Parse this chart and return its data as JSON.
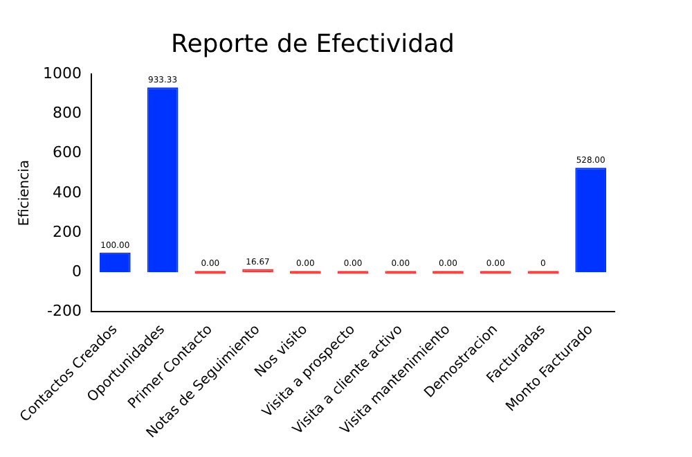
{
  "chart_data": {
    "type": "bar",
    "title": "Reporte de Efectividad",
    "ylabel": "Eficiencia",
    "categories": [
      "Contactos Creados",
      "Oportunidades",
      "Primer Contacto",
      "Notas de Seguimiento",
      "Nos visito",
      "Visita a prospecto",
      "Visita a cliente activo",
      "Visita mantenimiento",
      "Demostracion",
      "Facturadas",
      "Monto Facturado"
    ],
    "values": [
      100,
      933.33,
      0,
      16.67,
      0,
      0,
      0,
      0,
      0,
      0,
      528
    ],
    "value_labels": [
      "100.00",
      "933.33",
      "0.00",
      "16.67",
      "0.00",
      "0.00",
      "0.00",
      "0.00",
      "0.00",
      "0",
      "528.00"
    ],
    "colors": [
      "#0033ff",
      "#0033ff",
      "#ff3333",
      "#ff3333",
      "#ff3333",
      "#ff3333",
      "#ff3333",
      "#ff3333",
      "#ff3333",
      "#ff3333",
      "#0033ff"
    ],
    "ylim": [
      -200,
      1000
    ],
    "yticks": [
      -200,
      0,
      200,
      400,
      600,
      800,
      1000
    ],
    "grid": false,
    "legend": false
  }
}
